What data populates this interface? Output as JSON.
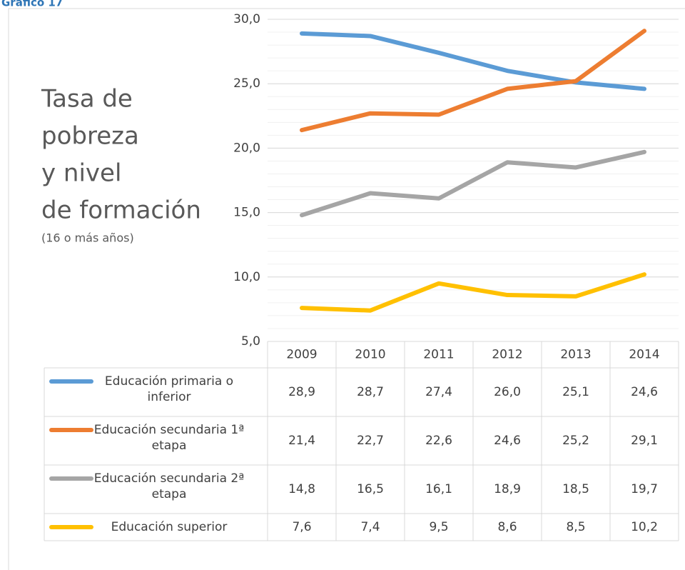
{
  "chart_data": {
    "type": "line",
    "header": "Gráfico 17",
    "title": [
      "Tasa de",
      "pobreza",
      "y nivel",
      "de formación"
    ],
    "subtitle": "(16 o más años)",
    "categories": [
      "2009",
      "2010",
      "2011",
      "2012",
      "2013",
      "2014"
    ],
    "series": [
      {
        "name": "Educación primaria o inferior",
        "color": "#5b9bd5",
        "values": [
          28.9,
          28.7,
          27.4,
          26.0,
          25.1,
          24.6
        ],
        "value_labels": [
          "28,9",
          "28,7",
          "27,4",
          "26,0",
          "25,1",
          "24,6"
        ]
      },
      {
        "name": "Educación secundaria 1ª etapa",
        "color": "#ed7d31",
        "values": [
          21.4,
          22.7,
          22.6,
          24.6,
          25.2,
          29.1
        ],
        "value_labels": [
          "21,4",
          "22,7",
          "22,6",
          "24,6",
          "25,2",
          "29,1"
        ]
      },
      {
        "name": "Educación secundaria 2ª etapa",
        "color": "#a5a5a5",
        "values": [
          14.8,
          16.5,
          16.1,
          18.9,
          18.5,
          19.7
        ],
        "value_labels": [
          "14,8",
          "16,5",
          "16,1",
          "18,9",
          "18,5",
          "19,7"
        ]
      },
      {
        "name": "Educación superior",
        "color": "#ffc000",
        "values": [
          7.6,
          7.4,
          9.5,
          8.6,
          8.5,
          10.2
        ],
        "value_labels": [
          "7,6",
          "7,4",
          "9,5",
          "8,6",
          "8,5",
          "10,2"
        ]
      }
    ],
    "ylim": [
      5,
      30
    ],
    "yticks": [
      {
        "value": 5,
        "label": "5,0"
      },
      {
        "value": 10,
        "label": "10,0"
      },
      {
        "value": 15,
        "label": "15,0"
      },
      {
        "value": 20,
        "label": "20,0"
      },
      {
        "value": 25,
        "label": "25,0"
      },
      {
        "value": 30,
        "label": "30,0"
      }
    ],
    "grid": true,
    "minor_grid_step": 1,
    "data_table": true
  }
}
